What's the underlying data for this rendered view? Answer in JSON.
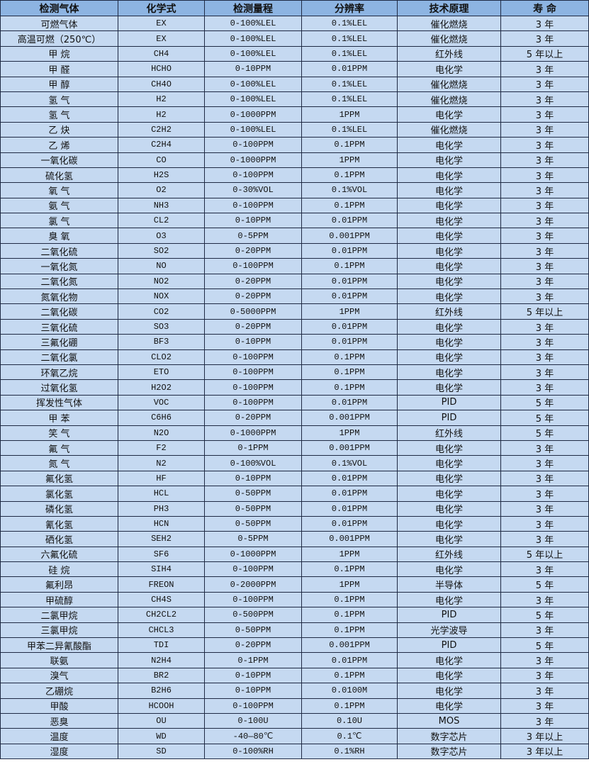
{
  "colors": {
    "header_bg": "#8db4e2",
    "row_bg": "#c5d9f1",
    "border": "#1f2a44"
  },
  "headers": [
    "检测气体",
    "化学式",
    "检测量程",
    "分辨率",
    "技术原理",
    "寿 命"
  ],
  "rows": [
    [
      "可燃气体",
      "EX",
      "0-100%LEL",
      "0.1%LEL",
      "催化燃烧",
      "3 年"
    ],
    [
      "高温可燃（250℃）",
      "EX",
      "0-100%LEL",
      "0.1%LEL",
      "催化燃烧",
      "3 年"
    ],
    [
      "甲 烷",
      "CH4",
      "0-100%LEL",
      "0.1%LEL",
      "红外线",
      "5 年以上"
    ],
    [
      "甲 醛",
      "HCHO",
      "0-10PPM",
      "0.01PPM",
      "电化学",
      "3 年"
    ],
    [
      "甲 醇",
      "CH4O",
      "0-100%LEL",
      "0.1%LEL",
      "催化燃烧",
      "3 年"
    ],
    [
      "氢 气",
      "H2",
      "0-100%LEL",
      "0.1%LEL",
      "催化燃烧",
      "3 年"
    ],
    [
      "氢 气",
      "H2",
      "0-1000PPM",
      "1PPM",
      "电化学",
      "3 年"
    ],
    [
      "乙 炔",
      "C2H2",
      "0-100%LEL",
      "0.1%LEL",
      "催化燃烧",
      "3 年"
    ],
    [
      "乙 烯",
      "C2H4",
      "0-100PPM",
      "0.1PPM",
      "电化学",
      "3 年"
    ],
    [
      "一氧化碳",
      "CO",
      "0-1000PPM",
      "1PPM",
      "电化学",
      "3 年"
    ],
    [
      "硫化氢",
      "H2S",
      "0-100PPM",
      "0.1PPM",
      "电化学",
      "3 年"
    ],
    [
      "氧 气",
      "O2",
      "0-30%VOL",
      "0.1%VOL",
      "电化学",
      "3 年"
    ],
    [
      "氨 气",
      "NH3",
      "0-100PPM",
      "0.1PPM",
      "电化学",
      "3 年"
    ],
    [
      "氯 气",
      "CL2",
      "0-10PPM",
      "0.01PPM",
      "电化学",
      "3 年"
    ],
    [
      "臭 氧",
      "O3",
      "0-5PPM",
      "0.001PPM",
      "电化学",
      "3 年"
    ],
    [
      "二氧化硫",
      "SO2",
      "0-20PPM",
      "0.01PPM",
      "电化学",
      "3 年"
    ],
    [
      "一氧化氮",
      "NO",
      "0-100PPM",
      "0.1PPM",
      "电化学",
      "3 年"
    ],
    [
      "二氧化氮",
      "NO2",
      "0-20PPM",
      "0.01PPM",
      "电化学",
      "3 年"
    ],
    [
      "氮氧化物",
      "NOX",
      "0-20PPM",
      "0.01PPM",
      "电化学",
      "3 年"
    ],
    [
      "二氧化碳",
      "CO2",
      "0-5000PPM",
      "1PPM",
      "红外线",
      "5 年以上"
    ],
    [
      "三氧化硫",
      "SO3",
      "0-20PPM",
      "0.01PPM",
      "电化学",
      "3 年"
    ],
    [
      "三氟化硼",
      "BF3",
      "0-10PPM",
      "0.01PPM",
      "电化学",
      "3 年"
    ],
    [
      "二氧化氯",
      "CLO2",
      "0-100PPM",
      "0.1PPM",
      "电化学",
      "3 年"
    ],
    [
      "环氧乙烷",
      "ETO",
      "0-100PPM",
      "0.1PPM",
      "电化学",
      "3 年"
    ],
    [
      "过氧化氢",
      "H2O2",
      "0-100PPM",
      "0.1PPM",
      "电化学",
      "3 年"
    ],
    [
      "挥发性气体",
      "VOC",
      "0-100PPM",
      "0.01PPM",
      "PID",
      "5 年"
    ],
    [
      "甲 苯",
      "C6H6",
      "0-20PPM",
      "0.001PPM",
      "PID",
      "5 年"
    ],
    [
      "笑 气",
      "N2O",
      "0-1000PPM",
      "1PPM",
      "红外线",
      "5 年"
    ],
    [
      "氟 气",
      "F2",
      "0-1PPM",
      "0.001PPM",
      "电化学",
      "3 年"
    ],
    [
      "氮 气",
      "N2",
      "0-100%VOL",
      "0.1%VOL",
      "电化学",
      "3 年"
    ],
    [
      "氟化氢",
      "HF",
      "0-10PPM",
      "0.01PPM",
      "电化学",
      "3 年"
    ],
    [
      "氯化氢",
      "HCL",
      "0-50PPM",
      "0.01PPM",
      "电化学",
      "3 年"
    ],
    [
      "磷化氢",
      "PH3",
      "0-50PPM",
      "0.01PPM",
      "电化学",
      "3 年"
    ],
    [
      "氰化氢",
      "HCN",
      "0-50PPM",
      "0.01PPM",
      "电化学",
      "3 年"
    ],
    [
      "硒化氢",
      "SEH2",
      "0-5PPM",
      "0.001PPM",
      "电化学",
      "3 年"
    ],
    [
      "六氟化硫",
      "SF6",
      "0-1000PPM",
      "1PPM",
      "红外线",
      "5 年以上"
    ],
    [
      "硅 烷",
      "SIH4",
      "0-100PPM",
      "0.1PPM",
      "电化学",
      "3 年"
    ],
    [
      "氟利昂",
      "FREON",
      "0-2000PPM",
      "1PPM",
      "半导体",
      "5 年"
    ],
    [
      "甲硫醇",
      "CH4S",
      "0-100PPM",
      "0.1PPM",
      "电化学",
      "3 年"
    ],
    [
      "二氯甲烷",
      "CH2CL2",
      "0-500PPM",
      "0.1PPM",
      "PID",
      "5 年"
    ],
    [
      "三氯甲烷",
      "CHCL3",
      "0-50PPM",
      "0.1PPM",
      "光学波导",
      "3 年"
    ],
    [
      "甲苯二异氰酸酯",
      "TDI",
      "0-20PPM",
      "0.001PPM",
      "PID",
      "5 年"
    ],
    [
      "联氨",
      "N2H4",
      "0-1PPM",
      "0.01PPM",
      "电化学",
      "3 年"
    ],
    [
      "溴气",
      "BR2",
      "0-10PPM",
      "0.1PPM",
      "电化学",
      "3 年"
    ],
    [
      "乙硼烷",
      "B2H6",
      "0-10PPM",
      "0.0100M",
      "电化学",
      "3 年"
    ],
    [
      "甲酸",
      "HCOOH",
      "0-100PPM",
      "0.1PPM",
      "电化学",
      "3 年"
    ],
    [
      "恶臭",
      "OU",
      "0-100U",
      "0.10U",
      "MOS",
      "3 年"
    ],
    [
      "温度",
      "WD",
      "-40—80℃",
      "0.1℃",
      "数字芯片",
      "3 年以上"
    ],
    [
      "湿度",
      "SD",
      "0-100%RH",
      "0.1%RH",
      "数字芯片",
      "3 年以上"
    ]
  ]
}
